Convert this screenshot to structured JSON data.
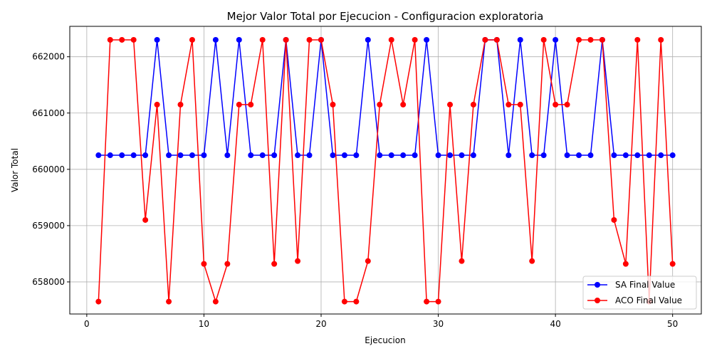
{
  "chart_data": {
    "type": "line",
    "title": "Mejor Valor Total por Ejecucion - Configuracion exploratoria",
    "xlabel": "Ejecucion",
    "ylabel": "Valor Total",
    "xlim": [
      -1.45,
      52.45
    ],
    "ylim": [
      657430,
      662540
    ],
    "xticks": [
      0,
      10,
      20,
      30,
      40,
      50
    ],
    "yticks": [
      658000,
      659000,
      660000,
      661000,
      662000
    ],
    "grid": true,
    "legend_position": "lower right",
    "x": [
      1,
      2,
      3,
      4,
      5,
      6,
      7,
      8,
      9,
      10,
      11,
      12,
      13,
      14,
      15,
      16,
      17,
      18,
      19,
      20,
      21,
      22,
      23,
      24,
      25,
      26,
      27,
      28,
      29,
      30,
      31,
      32,
      33,
      34,
      35,
      36,
      37,
      38,
      39,
      40,
      41,
      42,
      43,
      44,
      45,
      46,
      47,
      48,
      49,
      50
    ],
    "series": [
      {
        "name": "SA Final Value",
        "color": "#0000ff",
        "values": [
          660250,
          660250,
          660250,
          660250,
          660250,
          662300,
          660250,
          660250,
          660250,
          660250,
          662300,
          660250,
          662300,
          660250,
          660250,
          660250,
          662300,
          660250,
          660250,
          662300,
          660250,
          660250,
          660250,
          662300,
          660250,
          660250,
          660250,
          660250,
          662300,
          660250,
          660250,
          660250,
          660250,
          662300,
          662300,
          660250,
          662300,
          660250,
          660250,
          662300,
          660250,
          660250,
          660250,
          662300,
          660250,
          660250,
          660250,
          660250,
          660250,
          660250
        ]
      },
      {
        "name": "ACO Final Value",
        "color": "#ff0000",
        "values": [
          657650,
          662300,
          662300,
          662300,
          659100,
          661150,
          657650,
          661150,
          662300,
          658320,
          657650,
          658320,
          661150,
          661150,
          662300,
          658320,
          662300,
          658370,
          662300,
          662300,
          661150,
          657650,
          657650,
          658370,
          661150,
          662300,
          661150,
          662300,
          657650,
          657650,
          661150,
          658370,
          661150,
          662300,
          662300,
          661150,
          661150,
          658370,
          662300,
          661150,
          661150,
          662300,
          662300,
          662300,
          659100,
          658320,
          662300,
          657650,
          662300,
          658320
        ]
      }
    ]
  }
}
